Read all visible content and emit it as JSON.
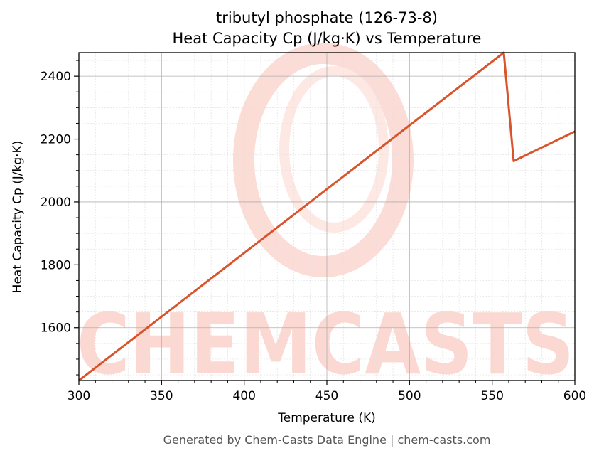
{
  "chart_data": {
    "type": "line",
    "title": "tributyl phosphate (126-73-8)",
    "subtitle": "Heat Capacity Cp (J/kg·K) vs Temperature",
    "xlabel": "Temperature (K)",
    "ylabel": "Heat Capacity Cp (J/kg·K)",
    "xlim": [
      300,
      600
    ],
    "ylim": [
      1432,
      2475
    ],
    "xticks": [
      300,
      350,
      400,
      450,
      500,
      550,
      600
    ],
    "yticks": [
      1600,
      1800,
      2000,
      2200,
      2400
    ],
    "grid": true,
    "series": [
      {
        "x": [
          300,
          557,
          563,
          600
        ],
        "y": [
          1432,
          2475,
          2130,
          2224
        ],
        "color": "#d9532b"
      }
    ]
  },
  "footer": "Generated by Chem-Casts Data Engine | chem-casts.com",
  "watermark": "CHEMCASTS",
  "colors": {
    "line": "#d9532b",
    "watermark": "#fbd9d2",
    "grid_major": "#b0b0b0",
    "grid_minor": "#e2e2e2"
  }
}
